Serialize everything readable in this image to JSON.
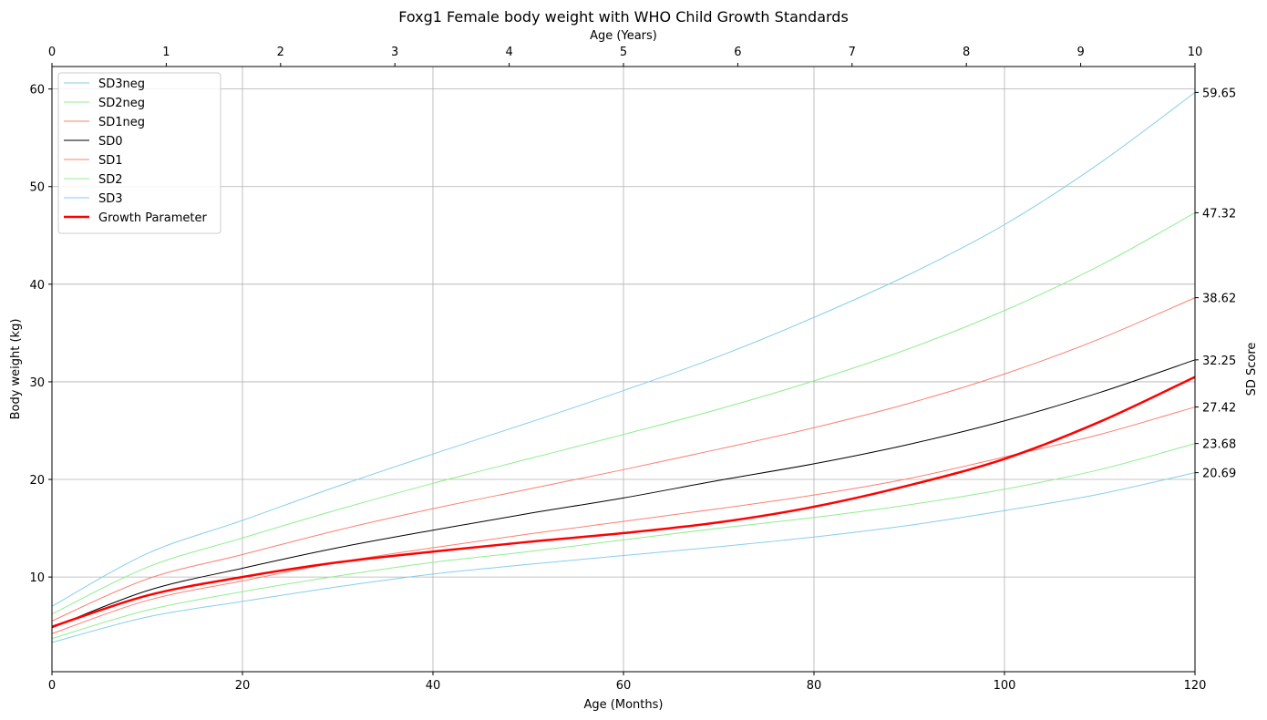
{
  "chart_data": {
    "type": "line",
    "title": "Foxg1 Female body weight with WHO Child Growth Standards",
    "xlabel": "Age (Months)",
    "ylabel": "Body weight (kg)",
    "top_xlabel": "Age (Years)",
    "right_ylabel": "SD Score",
    "xlim": [
      0,
      120
    ],
    "ylim": [
      0.3,
      62.3
    ],
    "top_xlim": [
      0,
      10
    ],
    "x_ticks": [
      0,
      20,
      40,
      60,
      80,
      100,
      120
    ],
    "y_ticks": [
      10,
      20,
      30,
      40,
      50,
      60
    ],
    "top_x_ticks": [
      0,
      1,
      2,
      3,
      4,
      5,
      6,
      7,
      8,
      9,
      10
    ],
    "grid": true,
    "legend_position": "upper-left",
    "x": [
      0,
      10,
      20,
      30,
      40,
      50,
      60,
      70,
      80,
      90,
      100,
      110,
      120
    ],
    "series": [
      {
        "name": "SD3neg",
        "color": "#87ceeb",
        "width": 1,
        "values": [
          3.3,
          5.9,
          7.5,
          9.0,
          10.3,
          11.3,
          12.2,
          13.1,
          14.1,
          15.3,
          16.8,
          18.5,
          20.69
        ]
      },
      {
        "name": "SD2neg",
        "color": "#90ee90",
        "width": 1,
        "values": [
          3.7,
          6.6,
          8.5,
          10.1,
          11.5,
          12.6,
          13.8,
          15.0,
          16.1,
          17.4,
          19.0,
          21.0,
          23.68
        ]
      },
      {
        "name": "SD1neg",
        "color": "#fa8072",
        "width": 1,
        "values": [
          4.2,
          7.6,
          9.6,
          11.5,
          13.0,
          14.4,
          15.7,
          17.0,
          18.4,
          20.1,
          22.3,
          24.6,
          27.42
        ]
      },
      {
        "name": "SD0",
        "color": "#000000",
        "width": 1,
        "values": [
          4.8,
          8.6,
          10.9,
          13.0,
          14.8,
          16.5,
          18.1,
          19.9,
          21.6,
          23.6,
          26.0,
          28.9,
          32.25
        ]
      },
      {
        "name": "SD1",
        "color": "#fa8072",
        "width": 1,
        "values": [
          5.5,
          9.8,
          12.3,
          14.8,
          17.0,
          19.0,
          21.0,
          23.1,
          25.3,
          27.8,
          30.8,
          34.4,
          38.62
        ]
      },
      {
        "name": "SD2",
        "color": "#90ee90",
        "width": 1,
        "values": [
          6.2,
          11.0,
          14.0,
          16.9,
          19.6,
          22.1,
          24.6,
          27.2,
          30.1,
          33.4,
          37.3,
          41.9,
          47.32
        ]
      },
      {
        "name": "SD3",
        "color": "#87ceeb",
        "width": 1,
        "values": [
          7.0,
          12.4,
          15.8,
          19.3,
          22.6,
          25.8,
          29.1,
          32.6,
          36.6,
          41.0,
          46.1,
          52.4,
          59.65
        ]
      },
      {
        "name": "Growth Parameter",
        "color": "#ff0000",
        "width": 2.5,
        "values": [
          4.9,
          8.1,
          10.0,
          11.5,
          12.6,
          13.6,
          14.5,
          15.6,
          17.2,
          19.4,
          22.1,
          25.9,
          30.5
        ]
      }
    ],
    "right_ticks": [
      {
        "value": 59.65,
        "label": "59.65"
      },
      {
        "value": 47.32,
        "label": "47.32"
      },
      {
        "value": 38.62,
        "label": "38.62"
      },
      {
        "value": 32.25,
        "label": "32.25"
      },
      {
        "value": 27.42,
        "label": "27.42"
      },
      {
        "value": 23.68,
        "label": "23.68"
      },
      {
        "value": 20.69,
        "label": "20.69"
      }
    ]
  }
}
